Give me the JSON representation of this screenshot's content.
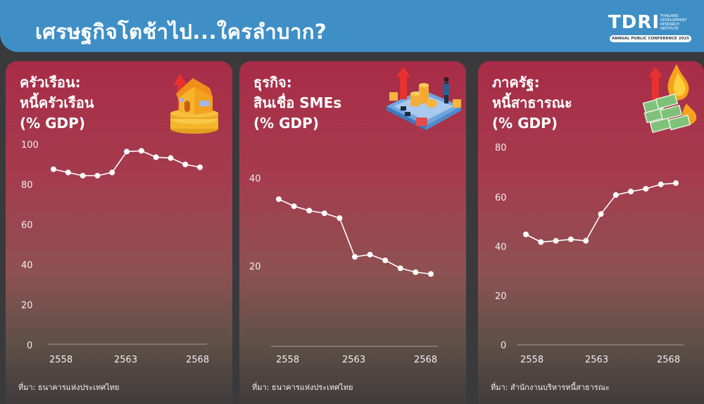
{
  "header": {
    "title": "เศรษฐกิจโตช้าไป...ใครลำบาก?",
    "logo": {
      "main": "TDRI",
      "sub": [
        "THAILAND",
        "DEVELOPMENT",
        "RESEARCH",
        "INSTITUTE"
      ],
      "badge": "ANNUAL PUBLIC CONFERENCE 2025"
    }
  },
  "colors": {
    "header_bg": "#3f8fc6",
    "page_bg": "#3a3a3c",
    "panel_top": "#a82a46",
    "panel_bottom": "#3e3a3a",
    "line": "#ffffff",
    "arrow": "#e8322f"
  },
  "panels": [
    {
      "title_lines": [
        "ครัวเรือน:",
        "หนี้ครัวเรือน",
        "(% GDP)"
      ],
      "icon": "house-on-coins-icon",
      "source": "ที่มา: ธนาคารแห่งประเทศไทย"
    },
    {
      "title_lines": [
        "ธุรกิจ:",
        "สินเชื่อ SMEs",
        "(% GDP)"
      ],
      "icon": "sme-business-coins-icon",
      "source": "ที่มา: ธนาคารแห่งประเทศไทย"
    },
    {
      "title_lines": [
        "ภาครัฐ:",
        "หนี้สาธารณะ",
        "(% GDP)"
      ],
      "icon": "burning-money-icon",
      "source": "ที่มา: สำนักงานบริหารหนี้สาธารณะ"
    }
  ],
  "chart_data": [
    {
      "type": "line",
      "title": "ครัวเรือน: หนี้ครัวเรือน (% GDP)",
      "xlabel": "",
      "ylabel": "% GDP",
      "x": [
        2558,
        2559,
        2560,
        2561,
        2562,
        2563,
        2564,
        2565,
        2566,
        2567,
        2568
      ],
      "x_ticks": [
        "2558",
        "2563",
        "2568"
      ],
      "y_ticks": [
        "0",
        "20",
        "40",
        "60",
        "80",
        "100"
      ],
      "values": [
        87.2,
        85.6,
        84.0,
        84.0,
        85.6,
        96.0,
        96.4,
        93.2,
        92.8,
        89.6,
        88.2
      ],
      "ylim": [
        0,
        100
      ],
      "grid": false,
      "legend": null
    },
    {
      "type": "line",
      "title": "ธุรกิจ: สินเชื่อ SMEs (% GDP)",
      "xlabel": "",
      "ylabel": "% GDP",
      "x": [
        2558,
        2559,
        2560,
        2561,
        2562,
        2563,
        2564,
        2565,
        2566,
        2567,
        2568
      ],
      "x_ticks": [
        "2558",
        "2563",
        "2568"
      ],
      "y_ticks": [
        "20",
        "40"
      ],
      "values": [
        35.2,
        33.6,
        32.6,
        32.0,
        30.9,
        22.1,
        22.6,
        21.3,
        19.5,
        18.6,
        18.2
      ],
      "ylim": [
        0,
        45
      ],
      "grid": false,
      "legend": null
    },
    {
      "type": "line",
      "title": "ภาครัฐ: หนี้สาธารณะ (% GDP)",
      "xlabel": "",
      "ylabel": "% GDP",
      "x": [
        2558,
        2559,
        2560,
        2561,
        2562,
        2563,
        2564,
        2565,
        2566,
        2567,
        2568
      ],
      "x_ticks": [
        "2558",
        "2563",
        "2568"
      ],
      "y_ticks": [
        "0",
        "20",
        "40",
        "60",
        "80"
      ],
      "values": [
        44.6,
        41.5,
        42.0,
        42.6,
        42.0,
        52.8,
        60.5,
        61.9,
        63.0,
        64.8,
        65.3
      ],
      "ylim": [
        0,
        80
      ],
      "grid": false,
      "legend": null
    }
  ]
}
